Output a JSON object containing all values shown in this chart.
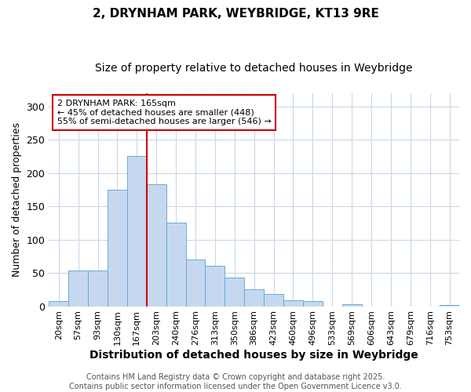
{
  "title_line1": "2, DRYNHAM PARK, WEYBRIDGE, KT13 9RE",
  "title_line2": "Size of property relative to detached houses in Weybridge",
  "xlabel": "Distribution of detached houses by size in Weybridge",
  "ylabel": "Number of detached properties",
  "categories": [
    "20sqm",
    "57sqm",
    "93sqm",
    "130sqm",
    "167sqm",
    "203sqm",
    "240sqm",
    "276sqm",
    "313sqm",
    "350sqm",
    "386sqm",
    "423sqm",
    "460sqm",
    "496sqm",
    "533sqm",
    "569sqm",
    "606sqm",
    "643sqm",
    "679sqm",
    "716sqm",
    "753sqm"
  ],
  "values": [
    8,
    54,
    54,
    175,
    225,
    183,
    125,
    70,
    61,
    43,
    25,
    18,
    9,
    8,
    0,
    3,
    0,
    0,
    0,
    0,
    2
  ],
  "bar_color": "#c5d8f0",
  "bar_edge_color": "#6aaad4",
  "vline_x_index": 4,
  "vline_color": "#cc0000",
  "annotation_box_text": "2 DRYNHAM PARK: 165sqm\n← 45% of detached houses are smaller (448)\n55% of semi-detached houses are larger (546) →",
  "annotation_box_color": "white",
  "annotation_box_edgecolor": "#cc0000",
  "ylim": [
    0,
    320
  ],
  "yticks": [
    0,
    50,
    100,
    150,
    200,
    250,
    300
  ],
  "background_color": "#ffffff",
  "grid_color": "#c8d8e8",
  "footer_line1": "Contains HM Land Registry data © Crown copyright and database right 2025.",
  "footer_line2": "Contains public sector information licensed under the Open Government Licence v3.0.",
  "title_fontsize": 11,
  "subtitle_fontsize": 10,
  "xlabel_fontsize": 10,
  "ylabel_fontsize": 9,
  "tick_fontsize": 8,
  "annotation_fontsize": 8,
  "footer_fontsize": 7
}
